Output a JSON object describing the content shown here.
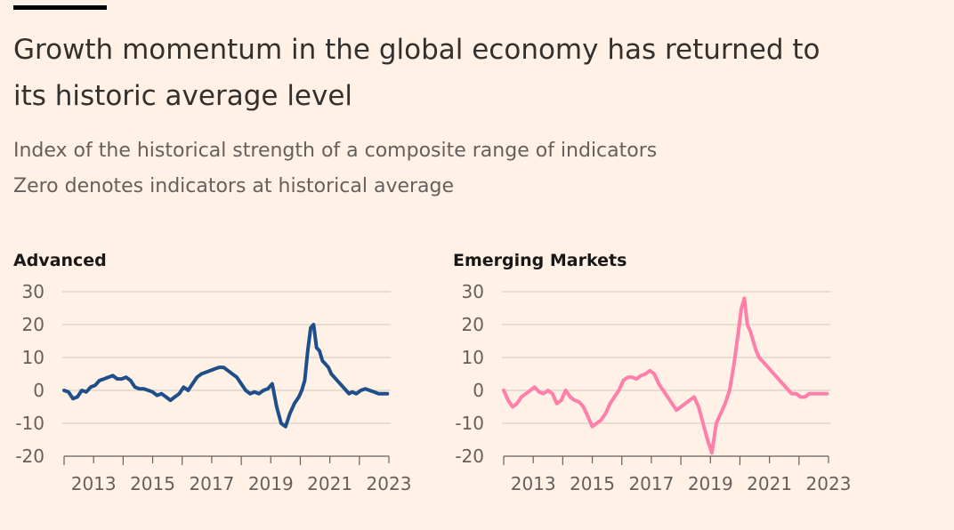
{
  "header": {
    "title": "Growth momentum in the global economy has returned to its historic average level",
    "subtitle_lines": [
      "Index of the historical strength of a composite range of indicators",
      "Zero denotes indicators at historical average"
    ]
  },
  "chart_data": [
    {
      "type": "line",
      "title": "Advanced",
      "color": "#1e4f8a",
      "ylim": [
        -20,
        30
      ],
      "yticks": [
        30,
        20,
        10,
        0,
        -10,
        -20
      ],
      "xlim": [
        2012,
        2023
      ],
      "xtick_labels": [
        "2013",
        "2015",
        "2017",
        "2019",
        "2021",
        "2023"
      ],
      "grid": true,
      "series": [
        {
          "x": [
            2012.0,
            2012.15,
            2012.3,
            2012.45,
            2012.6,
            2012.75,
            2012.9,
            2013.05,
            2013.2,
            2013.35,
            2013.5,
            2013.65,
            2013.8,
            2013.95,
            2014.1,
            2014.25,
            2014.4,
            2014.55,
            2014.7,
            2014.85,
            2015.0,
            2015.15,
            2015.3,
            2015.45,
            2015.6,
            2015.75,
            2015.9,
            2016.05,
            2016.2,
            2016.35,
            2016.5,
            2016.65,
            2016.8,
            2016.95,
            2017.1,
            2017.25,
            2017.4,
            2017.55,
            2017.7,
            2017.85,
            2018.0,
            2018.15,
            2018.3,
            2018.45,
            2018.6,
            2018.75,
            2018.9,
            2019.05,
            2019.2,
            2019.35,
            2019.5,
            2019.65,
            2019.8,
            2019.95,
            2020.05,
            2020.15,
            2020.25,
            2020.35,
            2020.45,
            2020.55,
            2020.65,
            2020.75,
            2020.85,
            2020.95,
            2021.05,
            2021.15,
            2021.25,
            2021.35,
            2021.45,
            2021.55,
            2021.65,
            2021.75,
            2021.9,
            2022.05,
            2022.2,
            2022.35,
            2022.5,
            2022.65,
            2022.8,
            2022.95
          ],
          "y": [
            0,
            -0.5,
            -2.5,
            -2,
            0,
            -0.5,
            1,
            1.5,
            3,
            3.5,
            4,
            4.5,
            3.5,
            3.5,
            4,
            3,
            1,
            0.5,
            0.5,
            0,
            -0.5,
            -1.5,
            -1,
            -2,
            -3,
            -2,
            -1,
            1,
            0,
            2,
            4,
            5,
            5.5,
            6,
            6.5,
            7,
            7,
            6,
            5,
            4,
            2,
            0,
            -1,
            -0.5,
            -1,
            0,
            0.5,
            2,
            -5,
            -10,
            -11,
            -7,
            -4,
            -2,
            0,
            3,
            12,
            19,
            20,
            13,
            12,
            9,
            8,
            7,
            5,
            4,
            3,
            2,
            1,
            0,
            -1,
            -0.5,
            -1,
            0,
            0.5,
            0,
            -0.5,
            -1,
            -1,
            -1
          ]
        }
      ]
    },
    {
      "type": "line",
      "title": "Emerging Markets",
      "color": "#ff7faa",
      "ylim": [
        -20,
        30
      ],
      "yticks": [
        30,
        20,
        10,
        0,
        -10,
        -20
      ],
      "xlim": [
        2012,
        2023
      ],
      "xtick_labels": [
        "2013",
        "2015",
        "2017",
        "2019",
        "2021",
        "2023"
      ],
      "grid": true,
      "series": [
        {
          "x": [
            2012.0,
            2012.15,
            2012.3,
            2012.45,
            2012.6,
            2012.75,
            2012.9,
            2013.05,
            2013.2,
            2013.35,
            2013.5,
            2013.65,
            2013.8,
            2013.95,
            2014.1,
            2014.25,
            2014.4,
            2014.55,
            2014.7,
            2014.85,
            2015.0,
            2015.15,
            2015.3,
            2015.45,
            2015.6,
            2015.75,
            2015.9,
            2016.05,
            2016.2,
            2016.35,
            2016.5,
            2016.65,
            2016.8,
            2016.95,
            2017.1,
            2017.25,
            2017.4,
            2017.55,
            2017.7,
            2017.85,
            2018.0,
            2018.15,
            2018.3,
            2018.45,
            2018.6,
            2018.75,
            2018.9,
            2019.05,
            2019.2,
            2019.35,
            2019.5,
            2019.65,
            2019.8,
            2019.95,
            2020.05,
            2020.15,
            2020.25,
            2020.35,
            2020.45,
            2020.55,
            2020.65,
            2020.75,
            2020.85,
            2020.95,
            2021.05,
            2021.15,
            2021.25,
            2021.35,
            2021.45,
            2021.55,
            2021.65,
            2021.75,
            2021.9,
            2022.05,
            2022.2,
            2022.35,
            2022.5,
            2022.65,
            2022.8,
            2022.95
          ],
          "y": [
            0,
            -3,
            -5,
            -4,
            -2,
            -1,
            0,
            1,
            -0.5,
            -1,
            0,
            -1,
            -4,
            -3,
            0,
            -2,
            -3,
            -3.5,
            -5,
            -8,
            -11,
            -10,
            -9,
            -7,
            -4,
            -2,
            0,
            3,
            4,
            4,
            3.5,
            4.5,
            5,
            6,
            5,
            2,
            0,
            -2,
            -4,
            -6,
            -5,
            -4,
            -3,
            -2,
            -5,
            -10,
            -15,
            -19,
            -10,
            -7,
            -4,
            0,
            8,
            18,
            25,
            28,
            20,
            18,
            15,
            12,
            10,
            9,
            8,
            7,
            6,
            5,
            4,
            3,
            2,
            1,
            0,
            -1,
            -1,
            -2,
            -2,
            -1,
            -1,
            -1,
            -1,
            -1
          ]
        }
      ]
    }
  ]
}
